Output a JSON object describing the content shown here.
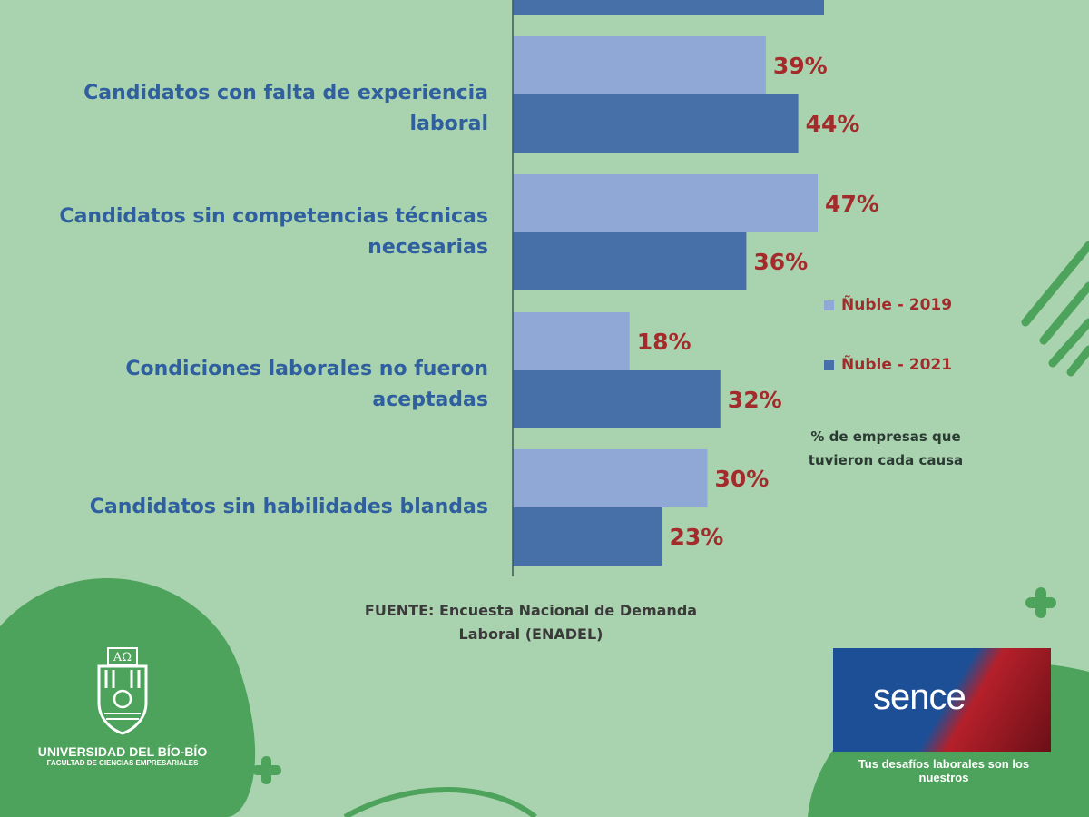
{
  "chart_data": {
    "type": "bar",
    "orientation": "horizontal",
    "categories": [
      "Candidatos con falta de experiencia laboral",
      "Candidatos sin competencias técnicas necesarias",
      "Condiciones laborales no fueron aceptadas",
      "Candidatos sin habilidades blandas"
    ],
    "series": [
      {
        "name": "Ñuble - 2019",
        "color": "#8fa8d6",
        "values": [
          39,
          47,
          18,
          30
        ]
      },
      {
        "name": "Ñuble - 2021",
        "color": "#4870a8",
        "values": [
          44,
          36,
          32,
          23
        ]
      }
    ],
    "partial_top_bar": {
      "series": "Ñuble - 2021"
    },
    "xlim": [
      0,
      100
    ],
    "value_suffix": "%",
    "legend": "right",
    "label_color": "#a32b2b",
    "category_color": "#2f5f9e"
  },
  "note": "% de empresas que tuvieron cada causa",
  "source": "FUENTE: Encuesta Nacional de Demanda Laboral  (ENADEL)",
  "logos": {
    "ubb_name": "UNIVERSIDAD DEL BÍO-BÍO",
    "ubb_faculty": "FACULTAD DE CIENCIAS EMPRESARIALES",
    "sence_name": "sence",
    "sence_tagline": "Tus desafíos laborales son los nuestros"
  }
}
